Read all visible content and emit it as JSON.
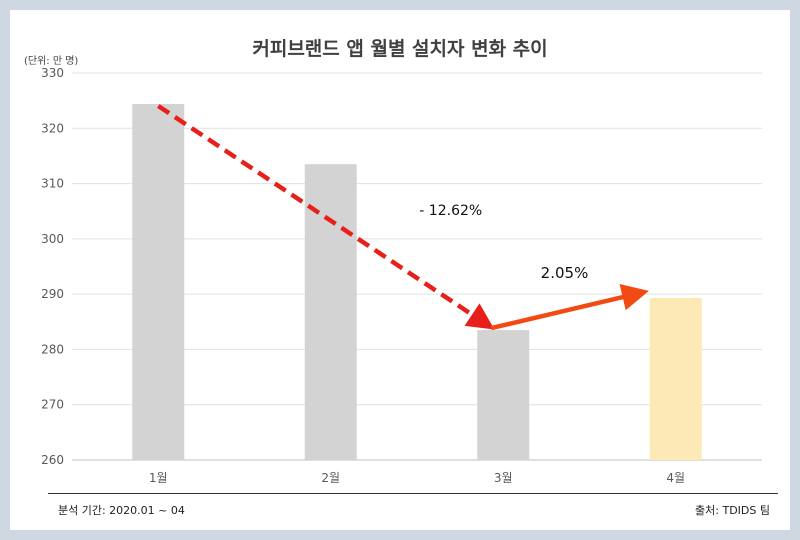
{
  "chart_data": {
    "type": "bar",
    "title": "커피브랜드 앱 월별 설치자 변화 추이",
    "unit_label": "(단위: 만 명)",
    "categories": [
      "1월",
      "2월",
      "3월",
      "4월"
    ],
    "values": [
      324.4,
      313.5,
      283.5,
      289.3
    ],
    "ylim": [
      260,
      330
    ],
    "yticks": [
      260,
      270,
      280,
      290,
      300,
      310,
      320,
      330
    ],
    "grid": true,
    "bar_colors": [
      "#d3d3d3",
      "#d3d3d3",
      "#d3d3d3",
      "#fde9b5"
    ],
    "annotations": [
      {
        "text": "- 12.62%",
        "from": "1월",
        "to": "3월",
        "style": "dashed",
        "color": "#e8201c"
      },
      {
        "text": "2.05%",
        "from": "3월",
        "to": "4월",
        "style": "solid",
        "color": "#f24a12"
      }
    ]
  },
  "footer": {
    "period": "분석 기간: 2020.01 ~ 04",
    "source": "출처: TDIDS 팀"
  }
}
